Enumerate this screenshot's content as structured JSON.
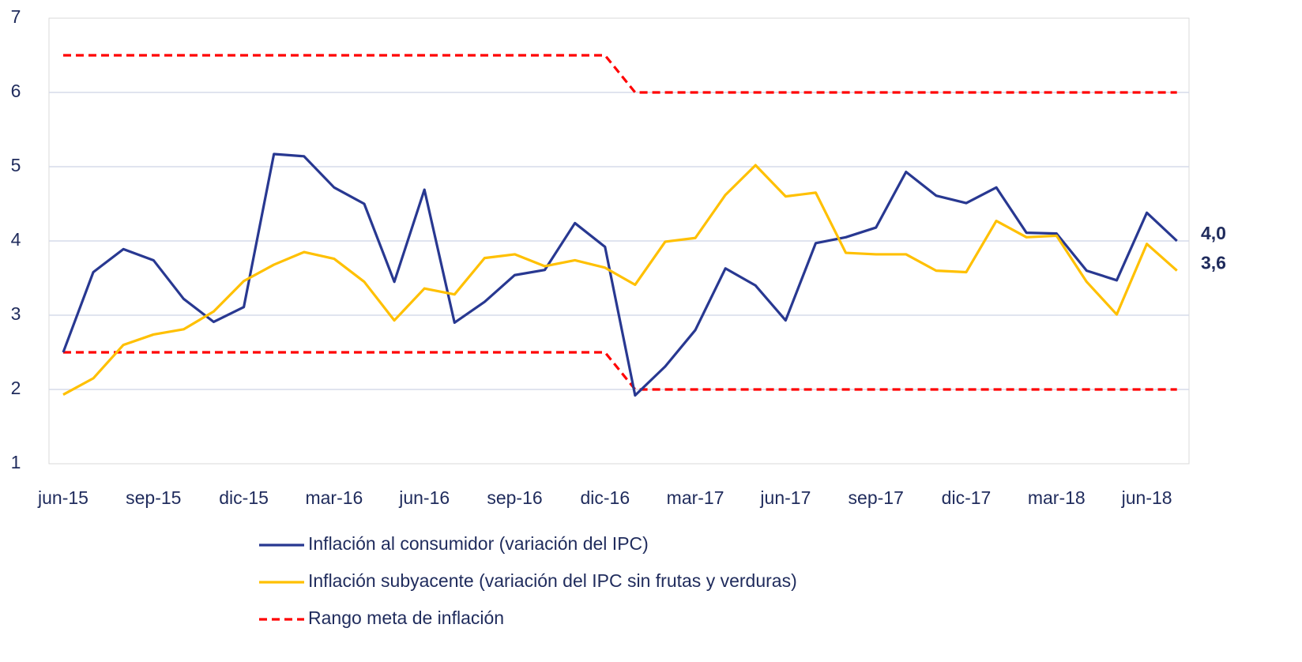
{
  "chart_data": {
    "type": "line",
    "categories": [
      "jun-15",
      null,
      null,
      "sep-15",
      null,
      null,
      "dic-15",
      null,
      null,
      "mar-16",
      null,
      null,
      "jun-16",
      null,
      null,
      "sep-16",
      null,
      null,
      "dic-16",
      null,
      null,
      "mar-17",
      null,
      null,
      "jun-17",
      null,
      null,
      "sep-17",
      null,
      null,
      "dic-17",
      null,
      null,
      "mar-18",
      null,
      null,
      "jun-18",
      null
    ],
    "series": [
      {
        "name": "Inflación al consumidor (variación del IPC)",
        "color": "#283891",
        "last_label": "4,0",
        "values": [
          2.5,
          3.58,
          3.89,
          3.74,
          3.22,
          2.91,
          3.11,
          5.17,
          5.14,
          4.72,
          4.5,
          3.45,
          4.69,
          2.9,
          3.18,
          3.54,
          3.61,
          4.24,
          3.92,
          1.92,
          2.31,
          2.8,
          3.63,
          3.4,
          2.93,
          3.97,
          4.05,
          4.18,
          4.93,
          4.61,
          4.51,
          4.72,
          4.11,
          4.1,
          3.6,
          3.47,
          4.38,
          4.0
        ]
      },
      {
        "name": "Inflación subyacente (variación del IPC sin frutas y verduras)",
        "color": "#ffc000",
        "last_label": "3,6",
        "values": [
          1.93,
          2.15,
          2.6,
          2.74,
          2.81,
          3.05,
          3.46,
          3.68,
          3.85,
          3.76,
          3.45,
          2.93,
          3.36,
          3.28,
          3.77,
          3.82,
          3.66,
          3.74,
          3.64,
          3.41,
          3.99,
          4.04,
          4.62,
          5.02,
          4.6,
          4.65,
          3.84,
          3.82,
          3.82,
          3.6,
          3.58,
          4.27,
          4.05,
          4.07,
          3.45,
          3.01,
          3.96,
          3.6
        ]
      }
    ],
    "range": {
      "name": "Rango meta de inflación",
      "color": "#ff0000",
      "upper": [
        6.5,
        6.5,
        6.5,
        6.5,
        6.5,
        6.5,
        6.5,
        6.5,
        6.5,
        6.5,
        6.5,
        6.5,
        6.5,
        6.5,
        6.5,
        6.5,
        6.5,
        6.5,
        6.5,
        6,
        6,
        6,
        6,
        6,
        6,
        6,
        6,
        6,
        6,
        6,
        6,
        6,
        6,
        6,
        6,
        6,
        6,
        6
      ],
      "lower": [
        2.5,
        2.5,
        2.5,
        2.5,
        2.5,
        2.5,
        2.5,
        2.5,
        2.5,
        2.5,
        2.5,
        2.5,
        2.5,
        2.5,
        2.5,
        2.5,
        2.5,
        2.5,
        2.5,
        2,
        2,
        2,
        2,
        2,
        2,
        2,
        2,
        2,
        2,
        2,
        2,
        2,
        2,
        2,
        2,
        2,
        2,
        2
      ]
    },
    "ylim": [
      1,
      7
    ],
    "yticks": [
      1,
      2,
      3,
      4,
      5,
      6,
      7
    ],
    "grid": true
  }
}
